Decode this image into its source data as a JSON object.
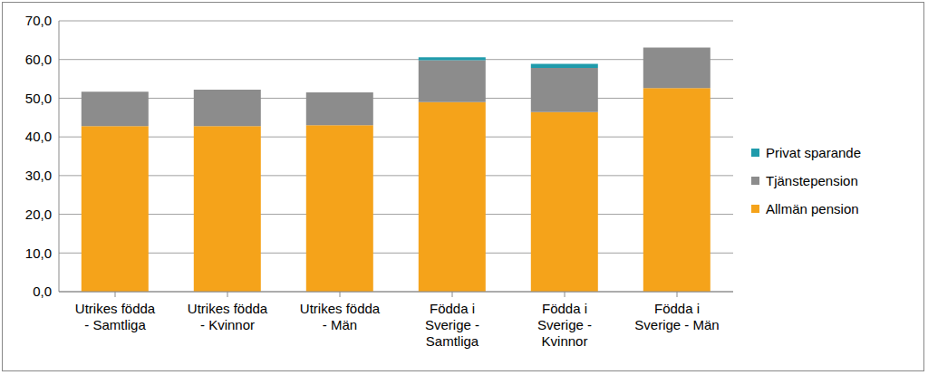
{
  "chart_data": {
    "type": "bar",
    "stacked": true,
    "grid": true,
    "legend": "right",
    "categories": [
      "Utrikes födda - Samtliga",
      "Utrikes födda - Kvinnor",
      "Utrikes födda - Män",
      "Födda i Sverige - Samtliga",
      "Födda i Sverige - Kvinnor",
      "Födda i Sverige - Män"
    ],
    "series": [
      {
        "name": "Allmän pension",
        "color": "#f5a31a",
        "values": [
          42.8,
          42.8,
          43.0,
          49.0,
          46.4,
          52.6
        ]
      },
      {
        "name": "Tjänstepension",
        "color": "#8c8c8c",
        "values": [
          8.9,
          9.4,
          8.5,
          10.8,
          11.4,
          10.5
        ]
      },
      {
        "name": "Privat sparande",
        "color": "#1f9bab",
        "values": [
          0,
          0,
          0,
          0.8,
          1.1,
          0
        ]
      }
    ],
    "ylim": [
      0,
      70
    ],
    "yticks": [
      {
        "value": 0,
        "label": "0,0"
      },
      {
        "value": 10,
        "label": "10,0"
      },
      {
        "value": 20,
        "label": "20,0"
      },
      {
        "value": 30,
        "label": "30,0"
      },
      {
        "value": 40,
        "label": "40,0"
      },
      {
        "value": 50,
        "label": "50,0"
      },
      {
        "value": 60,
        "label": "60,0"
      },
      {
        "value": 70,
        "label": "70,0"
      }
    ]
  }
}
